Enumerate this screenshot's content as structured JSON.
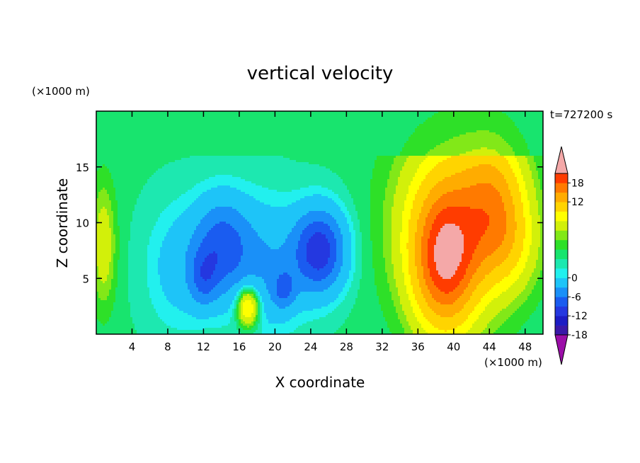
{
  "chart_data": {
    "type": "heatmap",
    "title": "vertical velocity",
    "xlabel": "X coordinate",
    "ylabel": "Z coordinate",
    "x_unit": "(×1000 m)",
    "y_unit": "(×1000 m)",
    "time_label": "t=727200 s",
    "xlim": [
      0,
      50
    ],
    "ylim": [
      0,
      20
    ],
    "x_ticks": [
      4,
      8,
      12,
      16,
      20,
      24,
      28,
      32,
      36,
      40,
      44,
      48
    ],
    "y_ticks": [
      5,
      10,
      15
    ],
    "colorbar_ticks": [
      18,
      12,
      6,
      0,
      -6,
      -12,
      -18
    ],
    "color_levels": [
      {
        "min": -21,
        "color": "#9b0ea8"
      },
      {
        "min": -18,
        "color": "#3a18a8"
      },
      {
        "min": -15,
        "color": "#1c1cc4"
      },
      {
        "min": -12,
        "color": "#2438e0"
      },
      {
        "min": -9,
        "color": "#1a5cf0"
      },
      {
        "min": -6,
        "color": "#1a90f8"
      },
      {
        "min": -3,
        "color": "#1ec4f8"
      },
      {
        "min": 0,
        "color": "#22f0ee"
      },
      {
        "min": 1,
        "color": "#1de8b0"
      },
      {
        "min": 2,
        "color": "#18e46e"
      },
      {
        "min": 3,
        "color": "#2ee028"
      },
      {
        "min": 4,
        "color": "#82e818"
      },
      {
        "min": 5,
        "color": "#d2f00a"
      },
      {
        "min": 7,
        "color": "#ffff00"
      },
      {
        "min": 9,
        "color": "#ffd400"
      },
      {
        "min": 12,
        "color": "#ffac00"
      },
      {
        "min": 15,
        "color": "#ff7a00"
      },
      {
        "min": 18,
        "color": "#ff3c00"
      },
      {
        "min": 21,
        "color": "#f4a8a8"
      }
    ],
    "features": [
      {
        "x": 14,
        "z": 8,
        "sx": 2.2,
        "sz": 3.0,
        "amp": -9
      },
      {
        "x": 12,
        "z": 5,
        "sx": 1.2,
        "sz": 1.8,
        "amp": -6
      },
      {
        "x": 25,
        "z": 7.5,
        "sx": 2.0,
        "sz": 2.6,
        "amp": -13
      },
      {
        "x": 19,
        "z": 6,
        "sx": 3.0,
        "sz": 4.0,
        "amp": -5
      },
      {
        "x": 21,
        "z": 4,
        "sx": 0.9,
        "sz": 1.2,
        "amp": -6
      },
      {
        "x": 9,
        "z": 6,
        "sx": 2.5,
        "sz": 4.0,
        "amp": -3
      },
      {
        "x": 17,
        "z": 2.5,
        "sx": 0.9,
        "sz": 1.3,
        "amp": 10
      },
      {
        "x": 39,
        "z": 6.5,
        "sx": 2.4,
        "sz": 4.2,
        "amp": 14
      },
      {
        "x": 40,
        "z": 10,
        "sx": 4.5,
        "sz": 6.0,
        "amp": 8
      },
      {
        "x": 44.5,
        "z": 12,
        "sx": 2.5,
        "sz": 4.0,
        "amp": 8
      },
      {
        "x": 46,
        "z": 8,
        "sx": 2.5,
        "sz": 3.0,
        "amp": 4
      },
      {
        "x": 0.8,
        "z": 8,
        "sx": 1.0,
        "sz": 4.0,
        "amp": 4
      }
    ]
  }
}
